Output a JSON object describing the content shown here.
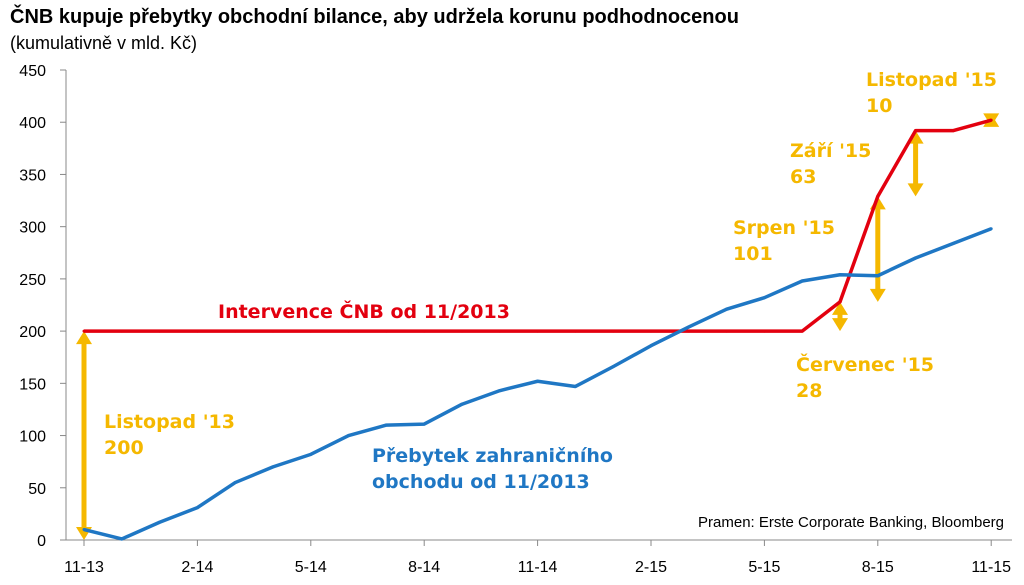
{
  "chart_data": {
    "type": "line",
    "title": "ČNB kupuje přebytky obchodní bilance, aby udržela korunu podhodnocenou",
    "subtitle": "(kumulativně v mld. Kč)",
    "source": "Pramen: Erste Corporate Banking, Bloomberg",
    "ylim": [
      0,
      450
    ],
    "y_ticks": [
      "0",
      "50",
      "100",
      "150",
      "200",
      "250",
      "300",
      "350",
      "400",
      "450"
    ],
    "x_ticks": [
      "11-13",
      "2-14",
      "5-14",
      "8-14",
      "11-14",
      "2-15",
      "5-15",
      "8-15",
      "11-15"
    ],
    "x": [
      "11-13",
      "12-13",
      "1-14",
      "2-14",
      "3-14",
      "4-14",
      "5-14",
      "6-14",
      "7-14",
      "8-14",
      "9-14",
      "10-14",
      "11-14",
      "12-14",
      "1-15",
      "2-15",
      "3-15",
      "4-15",
      "5-15",
      "6-15",
      "7-15",
      "8-15",
      "9-15",
      "10-15",
      "11-15"
    ],
    "series": [
      {
        "name": "Intervence ČNB od 11/2013",
        "color": "#e3000f",
        "values": [
          200,
          200,
          200,
          200,
          200,
          200,
          200,
          200,
          200,
          200,
          200,
          200,
          200,
          200,
          200,
          200,
          200,
          200,
          200,
          200,
          228,
          329,
          392,
          392,
          402
        ]
      },
      {
        "name": "Přebytek zahraničního obchodu od 11/2013",
        "name_lines": [
          "Přebytek zahraničního",
          "obchodu od 11/2013"
        ],
        "color": "#1f77c4",
        "values": [
          10,
          1,
          17,
          31,
          55,
          70,
          82,
          100,
          110,
          111,
          130,
          143,
          152,
          147,
          166,
          186,
          204,
          221,
          232,
          248,
          254,
          253,
          270,
          284,
          298
        ]
      }
    ],
    "annotations": [
      {
        "name": "Listopad '13",
        "value": "200"
      },
      {
        "name": "Červenec '15",
        "value": "28"
      },
      {
        "name": "Srpen '15",
        "value": "101"
      },
      {
        "name": "Září '15",
        "value": "63"
      },
      {
        "name": "Listopad '15",
        "value": "10"
      }
    ],
    "accent_color": "#f5b800",
    "grid": false,
    "legend": "none"
  }
}
